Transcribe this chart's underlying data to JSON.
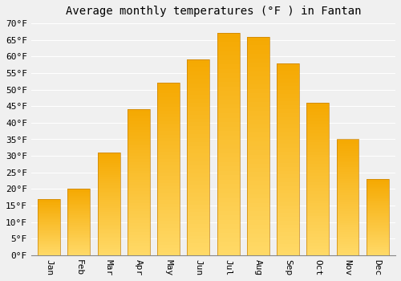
{
  "title": "Average monthly temperatures (°F ) in Fantan",
  "months": [
    "Jan",
    "Feb",
    "Mar",
    "Apr",
    "May",
    "Jun",
    "Jul",
    "Aug",
    "Sep",
    "Oct",
    "Nov",
    "Dec"
  ],
  "values": [
    17,
    20,
    31,
    44,
    52,
    59,
    67,
    66,
    58,
    46,
    35,
    23
  ],
  "bar_color_top": "#F5A800",
  "bar_color_bottom": "#FFD966",
  "bar_edge_color": "#C8830A",
  "ylim": [
    0,
    70
  ],
  "yticks": [
    0,
    5,
    10,
    15,
    20,
    25,
    30,
    35,
    40,
    45,
    50,
    55,
    60,
    65,
    70
  ],
  "background_color": "#F0F0F0",
  "grid_color": "#FFFFFF",
  "title_fontsize": 10,
  "tick_fontsize": 8,
  "font_family": "monospace"
}
